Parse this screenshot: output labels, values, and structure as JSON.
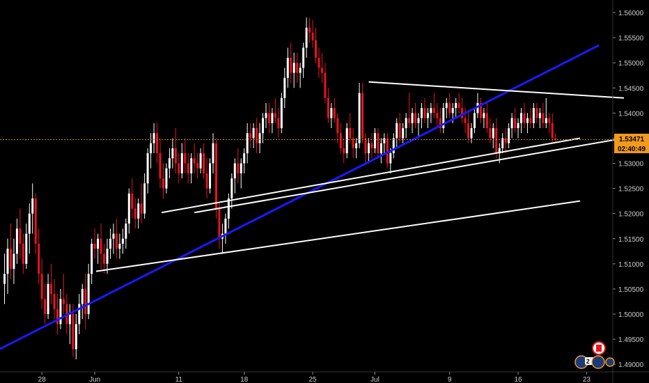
{
  "chart_data": {
    "type": "candlestick",
    "title": "",
    "xlabel": "",
    "ylabel": "",
    "ylim": [
      1.4885,
      1.5625
    ],
    "grid": false,
    "y_ticks": [
      "1.49000",
      "1.49500",
      "1.50000",
      "1.50500",
      "1.51000",
      "1.51500",
      "1.52000",
      "1.52500",
      "1.53000",
      "1.53500",
      "1.54000",
      "1.54500",
      "1.55000",
      "1.55500",
      "1.56000"
    ],
    "x_tick_labels": [
      {
        "label": "28",
        "bar": 12
      },
      {
        "label": "Jun",
        "bar": 29
      },
      {
        "label": "11",
        "bar": 56
      },
      {
        "label": "18",
        "bar": 77
      },
      {
        "label": "25",
        "bar": 99
      },
      {
        "label": "Jul",
        "bar": 119
      },
      {
        "label": "9",
        "bar": 143
      },
      {
        "label": "16",
        "bar": 165
      },
      {
        "label": "23",
        "bar": 187
      }
    ],
    "current_price": {
      "label": "1.53471",
      "value": 1.53471
    },
    "countdown": "02:40:49",
    "bars": [
      [
        1.506,
        1.512,
        1.502,
        1.508
      ],
      [
        1.508,
        1.515,
        1.504,
        1.513
      ],
      [
        1.513,
        1.518,
        1.507,
        1.509
      ],
      [
        1.509,
        1.515,
        1.506,
        1.512
      ],
      [
        1.512,
        1.519,
        1.51,
        1.517
      ],
      [
        1.517,
        1.521,
        1.511,
        1.514
      ],
      [
        1.514,
        1.516,
        1.508,
        1.51
      ],
      [
        1.51,
        1.518,
        1.509,
        1.516
      ],
      [
        1.516,
        1.522,
        1.512,
        1.52
      ],
      [
        1.52,
        1.526,
        1.516,
        1.523
      ],
      [
        1.523,
        1.524,
        1.512,
        1.514
      ],
      [
        1.514,
        1.517,
        1.506,
        1.508
      ],
      [
        1.508,
        1.511,
        1.501,
        1.503
      ],
      [
        1.503,
        1.506,
        1.498,
        1.5
      ],
      [
        1.5,
        1.508,
        1.499,
        1.506
      ],
      [
        1.506,
        1.51,
        1.502,
        1.504
      ],
      [
        1.504,
        1.507,
        1.499,
        1.501
      ],
      [
        1.501,
        1.504,
        1.496,
        1.498
      ],
      [
        1.498,
        1.505,
        1.497,
        1.503
      ],
      [
        1.503,
        1.508,
        1.5,
        1.502
      ],
      [
        1.502,
        1.504,
        1.496,
        1.498
      ],
      [
        1.498,
        1.502,
        1.494,
        1.5
      ],
      [
        1.5,
        1.502,
        1.4915,
        1.493
      ],
      [
        1.493,
        1.5,
        1.491,
        1.498
      ],
      [
        1.498,
        1.504,
        1.496,
        1.502
      ],
      [
        1.502,
        1.506,
        1.499,
        1.505
      ],
      [
        1.505,
        1.508,
        1.497,
        1.5
      ],
      [
        1.5,
        1.51,
        1.499,
        1.508
      ],
      [
        1.508,
        1.515,
        1.506,
        1.514
      ],
      [
        1.514,
        1.517,
        1.511,
        1.513
      ],
      [
        1.513,
        1.516,
        1.51,
        1.515
      ],
      [
        1.515,
        1.518,
        1.509,
        1.512
      ],
      [
        1.512,
        1.514,
        1.508,
        1.51
      ],
      [
        1.51,
        1.515,
        1.508,
        1.513
      ],
      [
        1.513,
        1.517,
        1.511,
        1.515
      ],
      [
        1.515,
        1.518,
        1.512,
        1.516
      ],
      [
        1.516,
        1.519,
        1.511,
        1.513
      ],
      [
        1.513,
        1.516,
        1.511,
        1.514
      ],
      [
        1.514,
        1.517,
        1.512,
        1.515
      ],
      [
        1.515,
        1.519,
        1.513,
        1.518
      ],
      [
        1.518,
        1.525,
        1.516,
        1.524
      ],
      [
        1.524,
        1.527,
        1.519,
        1.521
      ],
      [
        1.521,
        1.523,
        1.517,
        1.519
      ],
      [
        1.519,
        1.523,
        1.517,
        1.522
      ],
      [
        1.522,
        1.526,
        1.518,
        1.52
      ],
      [
        1.52,
        1.528,
        1.519,
        1.526
      ],
      [
        1.526,
        1.533,
        1.524,
        1.532
      ],
      [
        1.532,
        1.536,
        1.529,
        1.534
      ],
      [
        1.534,
        1.538,
        1.532,
        1.536
      ],
      [
        1.536,
        1.538,
        1.53,
        1.532
      ],
      [
        1.532,
        1.535,
        1.525,
        1.527
      ],
      [
        1.527,
        1.53,
        1.523,
        1.525
      ],
      [
        1.525,
        1.53,
        1.524,
        1.529
      ],
      [
        1.529,
        1.533,
        1.527,
        1.531
      ],
      [
        1.531,
        1.535,
        1.529,
        1.533
      ],
      [
        1.533,
        1.537,
        1.528,
        1.53
      ],
      [
        1.53,
        1.532,
        1.526,
        1.528
      ],
      [
        1.528,
        1.534,
        1.527,
        1.532
      ],
      [
        1.532,
        1.535,
        1.528,
        1.53
      ],
      [
        1.53,
        1.532,
        1.526,
        1.528
      ],
      [
        1.528,
        1.532,
        1.526,
        1.531
      ],
      [
        1.531,
        1.534,
        1.528,
        1.53
      ],
      [
        1.53,
        1.532,
        1.527,
        1.529
      ],
      [
        1.529,
        1.533,
        1.528,
        1.532
      ],
      [
        1.532,
        1.534,
        1.527,
        1.528
      ],
      [
        1.528,
        1.531,
        1.523,
        1.525
      ],
      [
        1.525,
        1.531,
        1.524,
        1.53
      ],
      [
        1.53,
        1.536,
        1.528,
        1.534
      ],
      [
        1.534,
        1.535,
        1.519,
        1.521
      ],
      [
        1.521,
        1.522,
        1.513,
        1.515
      ],
      [
        1.515,
        1.518,
        1.512,
        1.516
      ],
      [
        1.516,
        1.52,
        1.514,
        1.519
      ],
      [
        1.519,
        1.524,
        1.517,
        1.523
      ],
      [
        1.523,
        1.528,
        1.521,
        1.527
      ],
      [
        1.527,
        1.531,
        1.524,
        1.53
      ],
      [
        1.53,
        1.533,
        1.526,
        1.528
      ],
      [
        1.528,
        1.531,
        1.525,
        1.53
      ],
      [
        1.53,
        1.533,
        1.528,
        1.532
      ],
      [
        1.532,
        1.538,
        1.53,
        1.536
      ],
      [
        1.536,
        1.538,
        1.533,
        1.535
      ],
      [
        1.535,
        1.538,
        1.533,
        1.537
      ],
      [
        1.537,
        1.539,
        1.532,
        1.534
      ],
      [
        1.534,
        1.538,
        1.532,
        1.536
      ],
      [
        1.536,
        1.54,
        1.534,
        1.539
      ],
      [
        1.539,
        1.542,
        1.537,
        1.54
      ],
      [
        1.54,
        1.542,
        1.536,
        1.538
      ],
      [
        1.538,
        1.541,
        1.536,
        1.54
      ],
      [
        1.54,
        1.543,
        1.538,
        1.539
      ],
      [
        1.539,
        1.541,
        1.535,
        1.537
      ],
      [
        1.537,
        1.544,
        1.536,
        1.543
      ],
      [
        1.543,
        1.549,
        1.541,
        1.547
      ],
      [
        1.547,
        1.553,
        1.545,
        1.551
      ],
      [
        1.551,
        1.554,
        1.546,
        1.548
      ],
      [
        1.548,
        1.552,
        1.545,
        1.55
      ],
      [
        1.55,
        1.552,
        1.546,
        1.548
      ],
      [
        1.548,
        1.55,
        1.545,
        1.549
      ],
      [
        1.549,
        1.554,
        1.547,
        1.553
      ],
      [
        1.553,
        1.559,
        1.551,
        1.557
      ],
      [
        1.557,
        1.559,
        1.554,
        1.556
      ],
      [
        1.556,
        1.5585,
        1.553,
        1.5545
      ],
      [
        1.5545,
        1.557,
        1.55,
        1.551
      ],
      [
        1.551,
        1.553,
        1.547,
        1.549
      ],
      [
        1.549,
        1.552,
        1.546,
        1.548
      ],
      [
        1.548,
        1.55,
        1.542,
        1.543
      ],
      [
        1.543,
        1.545,
        1.538,
        1.539
      ],
      [
        1.539,
        1.542,
        1.537,
        1.541
      ],
      [
        1.541,
        1.543,
        1.538,
        1.539
      ],
      [
        1.539,
        1.54,
        1.534,
        1.536
      ],
      [
        1.536,
        1.538,
        1.532,
        1.533
      ],
      [
        1.533,
        1.535,
        1.53,
        1.532
      ],
      [
        1.532,
        1.538,
        1.531,
        1.537
      ],
      [
        1.537,
        1.54,
        1.534,
        1.535
      ],
      [
        1.535,
        1.537,
        1.531,
        1.533
      ],
      [
        1.533,
        1.535,
        1.531,
        1.534
      ],
      [
        1.534,
        1.546,
        1.533,
        1.544
      ],
      [
        1.544,
        1.546,
        1.534,
        1.535
      ],
      [
        1.535,
        1.536,
        1.53,
        1.532
      ],
      [
        1.532,
        1.535,
        1.53,
        1.534
      ],
      [
        1.534,
        1.536,
        1.531,
        1.533
      ],
      [
        1.533,
        1.537,
        1.532,
        1.536
      ],
      [
        1.536,
        1.537,
        1.531,
        1.532
      ],
      [
        1.532,
        1.535,
        1.53,
        1.534
      ],
      [
        1.534,
        1.536,
        1.532,
        1.535
      ],
      [
        1.535,
        1.536,
        1.529,
        1.53
      ],
      [
        1.53,
        1.533,
        1.528,
        1.532
      ],
      [
        1.532,
        1.536,
        1.531,
        1.535
      ],
      [
        1.535,
        1.539,
        1.533,
        1.538
      ],
      [
        1.538,
        1.54,
        1.534,
        1.535
      ],
      [
        1.535,
        1.538,
        1.534,
        1.537
      ],
      [
        1.537,
        1.54,
        1.535,
        1.539
      ],
      [
        1.539,
        1.544,
        1.537,
        1.538
      ],
      [
        1.538,
        1.541,
        1.536,
        1.54
      ],
      [
        1.54,
        1.542,
        1.537,
        1.538
      ],
      [
        1.538,
        1.54,
        1.535,
        1.539
      ],
      [
        1.539,
        1.542,
        1.537,
        1.541
      ],
      [
        1.541,
        1.543,
        1.538,
        1.539
      ],
      [
        1.539,
        1.541,
        1.537,
        1.54
      ],
      [
        1.54,
        1.542,
        1.538,
        1.541
      ],
      [
        1.541,
        1.544,
        1.539,
        1.54
      ],
      [
        1.54,
        1.542,
        1.537,
        1.539
      ],
      [
        1.539,
        1.541,
        1.536,
        1.537
      ],
      [
        1.537,
        1.542,
        1.536,
        1.541
      ],
      [
        1.541,
        1.543,
        1.539,
        1.542
      ],
      [
        1.542,
        1.544,
        1.539,
        1.54
      ],
      [
        1.54,
        1.542,
        1.538,
        1.541
      ],
      [
        1.541,
        1.543,
        1.539,
        1.542
      ],
      [
        1.542,
        1.544,
        1.54,
        1.541
      ],
      [
        1.541,
        1.543,
        1.538,
        1.539
      ],
      [
        1.539,
        1.541,
        1.536,
        1.538
      ],
      [
        1.538,
        1.54,
        1.534,
        1.535
      ],
      [
        1.535,
        1.538,
        1.534,
        1.537
      ],
      [
        1.537,
        1.541,
        1.536,
        1.54
      ],
      [
        1.54,
        1.544,
        1.539,
        1.542
      ],
      [
        1.542,
        1.543,
        1.538,
        1.539
      ],
      [
        1.539,
        1.541,
        1.537,
        1.54
      ],
      [
        1.54,
        1.542,
        1.536,
        1.537
      ],
      [
        1.537,
        1.539,
        1.534,
        1.535
      ],
      [
        1.535,
        1.538,
        1.533,
        1.537
      ],
      [
        1.537,
        1.539,
        1.531,
        1.532
      ],
      [
        1.532,
        1.534,
        1.53,
        1.533
      ],
      [
        1.533,
        1.536,
        1.532,
        1.535
      ],
      [
        1.535,
        1.537,
        1.532,
        1.534
      ],
      [
        1.534,
        1.538,
        1.533,
        1.537
      ],
      [
        1.537,
        1.54,
        1.535,
        1.539
      ],
      [
        1.539,
        1.541,
        1.536,
        1.537
      ],
      [
        1.537,
        1.539,
        1.535,
        1.538
      ],
      [
        1.538,
        1.541,
        1.536,
        1.54
      ],
      [
        1.54,
        1.542,
        1.537,
        1.538
      ],
      [
        1.538,
        1.54,
        1.536,
        1.539
      ],
      [
        1.539,
        1.541,
        1.537,
        1.538
      ],
      [
        1.538,
        1.542,
        1.537,
        1.541
      ],
      [
        1.541,
        1.542,
        1.538,
        1.539
      ],
      [
        1.539,
        1.541,
        1.537,
        1.54
      ],
      [
        1.54,
        1.542,
        1.537,
        1.538
      ],
      [
        1.538,
        1.543,
        1.537,
        1.539
      ],
      [
        1.539,
        1.54,
        1.536,
        1.538
      ],
      [
        1.538,
        1.54,
        1.534,
        1.535
      ],
      [
        1.535,
        1.536,
        1.534,
        1.5347
      ]
    ],
    "trendlines": [
      {
        "name": "blue-support-line",
        "color": "#1a1aff",
        "from": [
          -8,
          1.491
        ],
        "to": [
          191,
          1.5535
        ]
      },
      {
        "name": "upper-resistance-line",
        "color": "#ffffff",
        "from": [
          117,
          1.5462
        ],
        "to": [
          199,
          1.543
        ]
      },
      {
        "name": "triangle-support-line",
        "color": "#ffffff",
        "from": [
          61,
          1.5202
        ],
        "to": [
          199,
          1.535
        ]
      },
      {
        "name": "mid-channel-line",
        "color": "#ffffff",
        "from": [
          40,
          1.5085
        ],
        "to": [
          199,
          1.5225
        ]
      },
      {
        "name": "lower-channel-line",
        "color": "#ffffff",
        "from": [
          40,
          1.5085
        ],
        "to": [
          199,
          1.5225
        ]
      }
    ],
    "colors": {
      "up": "#ffffff",
      "down": "#e8141e",
      "wick": "#ffffff",
      "price_line": "#c8821e",
      "price_tag": "#f29a1a",
      "axis_text": "#cfcfcf"
    }
  },
  "events": {
    "flag_icon": "canada-flag-icon",
    "count_label": "2 1"
  }
}
